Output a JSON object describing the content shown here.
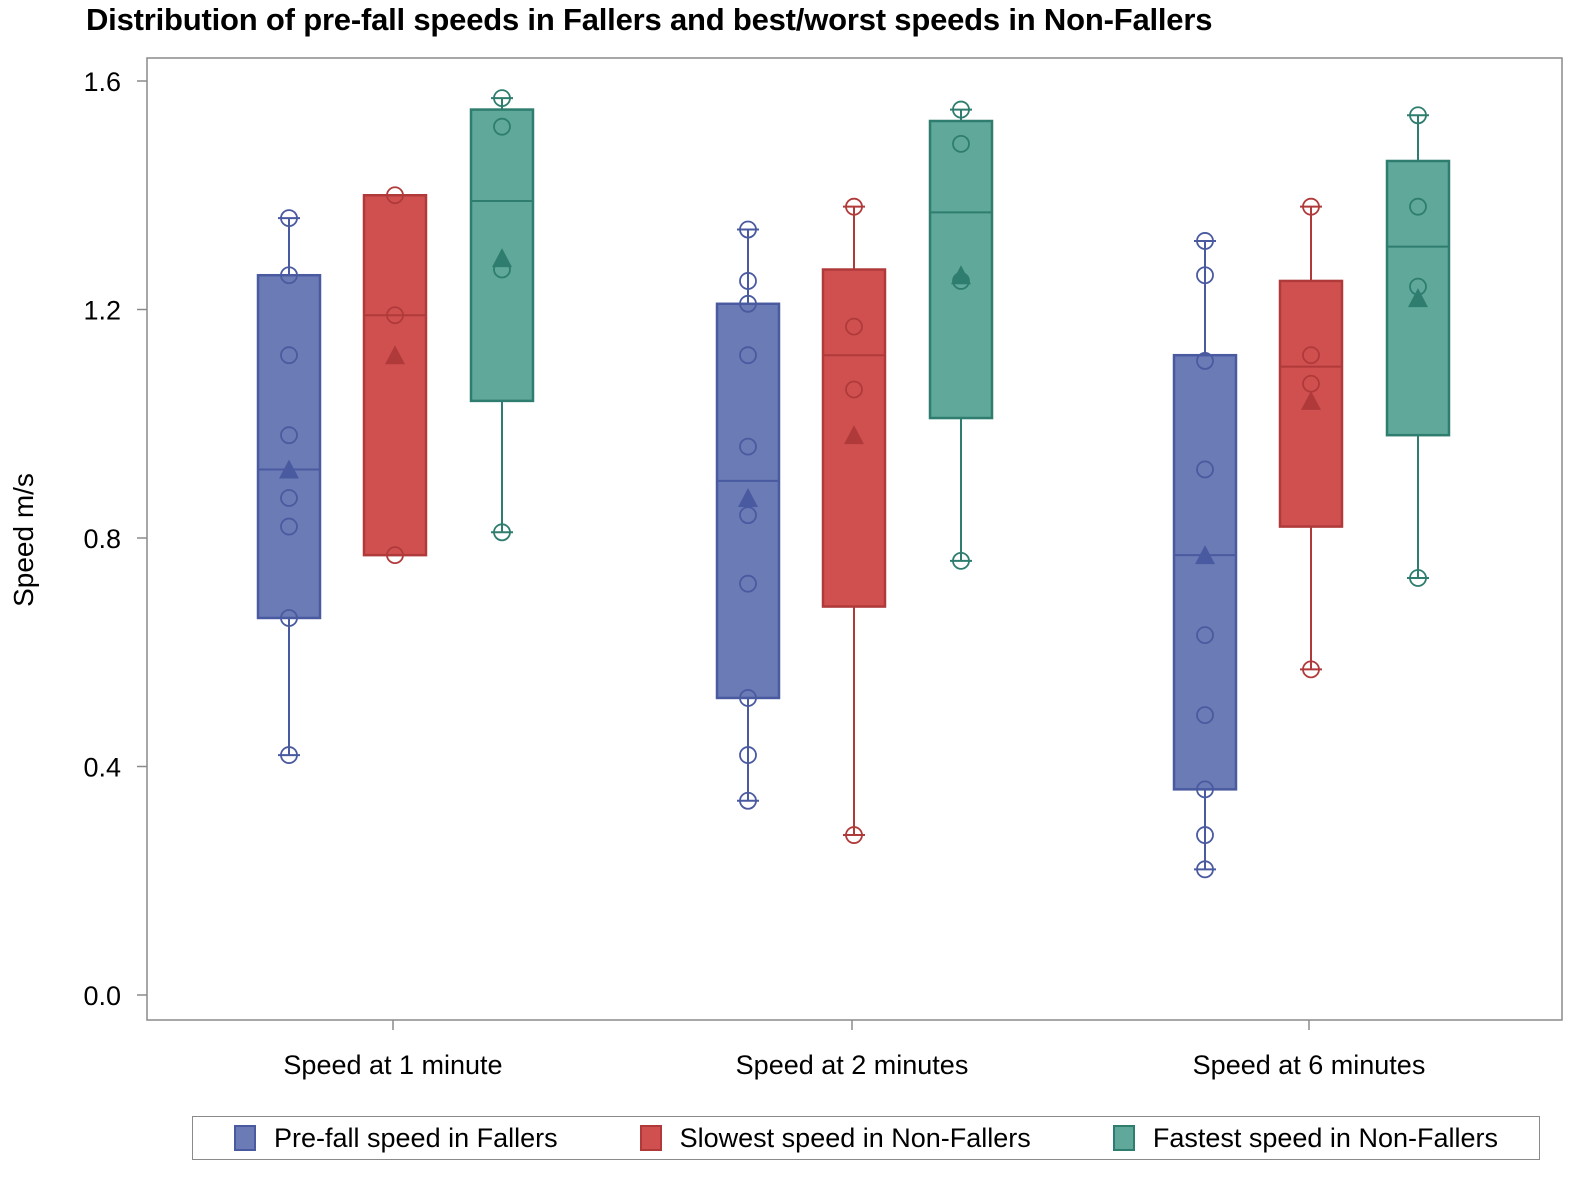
{
  "chart_data": {
    "type": "box",
    "title": "Distribution of pre-fall speeds in Fallers and best/worst speeds in Non-Fallers",
    "ylabel": "Speed m/s",
    "xlabel": "",
    "ylim": [
      -0.04,
      1.64
    ],
    "yticks": [
      "0.0",
      "0.4",
      "0.8",
      "1.2",
      "1.6"
    ],
    "categories": [
      "Speed at 1 minute",
      "Speed at 2 minutes",
      "Speed at 6 minutes"
    ],
    "legend_position": "bottom",
    "series": [
      {
        "name": "Pre-fall speed in Fallers",
        "color": "#6b7bb5",
        "stroke": "#4a5aa0",
        "boxes": [
          {
            "min": 0.42,
            "q1": 0.66,
            "median": 0.92,
            "q3": 1.26,
            "max": 1.36,
            "mean": 0.92,
            "points": [
              0.42,
              0.66,
              0.82,
              0.87,
              0.98,
              1.12,
              1.26,
              1.36
            ]
          },
          {
            "min": 0.34,
            "q1": 0.52,
            "median": 0.9,
            "q3": 1.21,
            "max": 1.34,
            "mean": 0.87,
            "points": [
              0.34,
              0.42,
              0.52,
              0.72,
              0.84,
              0.96,
              1.12,
              1.21,
              1.25,
              1.34
            ]
          },
          {
            "min": 0.22,
            "q1": 0.36,
            "median": 0.77,
            "q3": 1.12,
            "max": 1.32,
            "mean": 0.77,
            "points": [
              0.22,
              0.28,
              0.36,
              0.49,
              0.63,
              0.92,
              1.11,
              1.26,
              1.32
            ]
          }
        ]
      },
      {
        "name": "Slowest speed in Non-Fallers",
        "color": "#d05050",
        "stroke": "#b03a3a",
        "boxes": [
          {
            "min": 0.77,
            "q1": 0.77,
            "median": 1.19,
            "q3": 1.4,
            "max": 1.4,
            "mean": 1.12,
            "points": [
              0.77,
              1.19,
              1.4
            ]
          },
          {
            "min": 0.28,
            "q1": 0.68,
            "median": 1.12,
            "q3": 1.27,
            "max": 1.38,
            "mean": 0.98,
            "points": [
              0.28,
              1.06,
              1.17,
              1.38
            ]
          },
          {
            "min": 0.57,
            "q1": 0.82,
            "median": 1.1,
            "q3": 1.25,
            "max": 1.38,
            "mean": 1.04,
            "points": [
              0.57,
              1.07,
              1.12,
              1.38
            ]
          }
        ]
      },
      {
        "name": "Fastest speed in Non-Fallers",
        "color": "#5fa89a",
        "stroke": "#2e7d6e",
        "boxes": [
          {
            "min": 0.81,
            "q1": 1.04,
            "median": 1.39,
            "q3": 1.55,
            "max": 1.57,
            "mean": 1.29,
            "points": [
              0.81,
              1.27,
              1.52,
              1.57
            ]
          },
          {
            "min": 0.76,
            "q1": 1.01,
            "median": 1.37,
            "q3": 1.53,
            "max": 1.55,
            "mean": 1.26,
            "points": [
              0.76,
              1.25,
              1.49,
              1.55
            ]
          },
          {
            "min": 0.73,
            "q1": 0.98,
            "median": 1.31,
            "q3": 1.46,
            "max": 1.54,
            "mean": 1.22,
            "points": [
              0.73,
              1.24,
              1.38,
              1.54
            ]
          }
        ]
      }
    ]
  }
}
